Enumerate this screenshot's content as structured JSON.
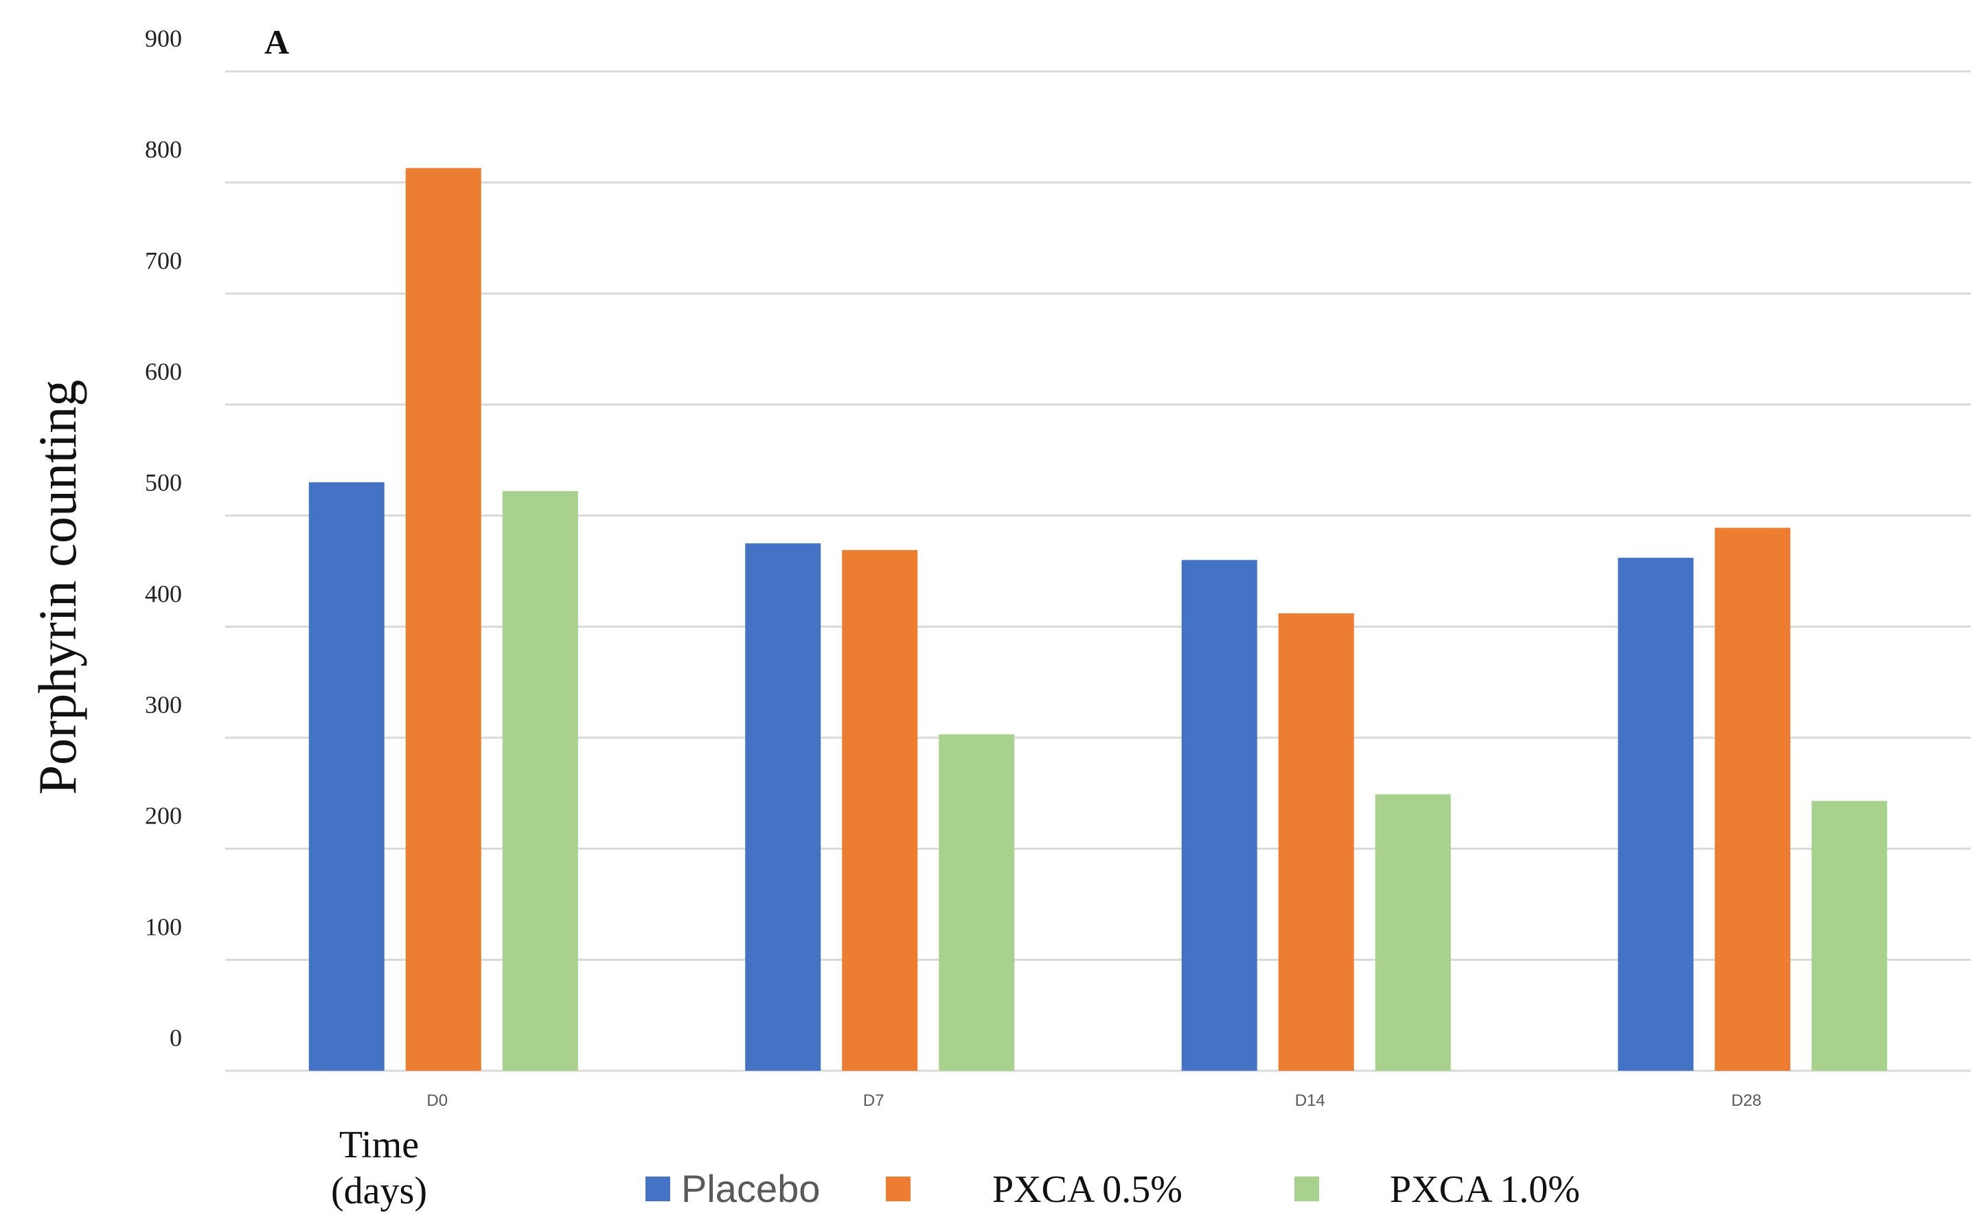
{
  "chart_data": {
    "type": "bar",
    "panel_label": "A",
    "ylabel": "Porphyrin counting",
    "xlabel_line1": "Time",
    "xlabel_line2": "(days)",
    "categories": [
      "D0",
      "D7",
      "D14",
      "D28"
    ],
    "ylim": [
      0,
      900
    ],
    "yticks": [
      0,
      100,
      200,
      300,
      400,
      500,
      600,
      700,
      800,
      900
    ],
    "grid": true,
    "legend_position": "bottom",
    "series": [
      {
        "name": "Placebo",
        "color": "#4472C4",
        "values": [
          530,
          475,
          460,
          462
        ]
      },
      {
        "name": "PXCA 0.5%",
        "color": "#ED7D31",
        "values": [
          813,
          469,
          412,
          489
        ]
      },
      {
        "name": "PXCA 1.0%",
        "color": "#A9D18E",
        "values": [
          522,
          303,
          249,
          243
        ]
      }
    ]
  }
}
